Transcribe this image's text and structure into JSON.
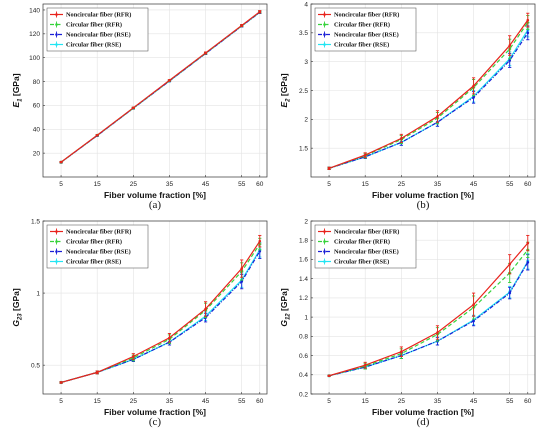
{
  "chart_data": [
    {
      "type": "line",
      "caption": "(a)",
      "xlabel": "Fiber volume fraction [%]",
      "ylabel": "E",
      "ylabel_sub": "1",
      "ylabel_unit": " [GPa]",
      "x": [
        5,
        15,
        25,
        35,
        45,
        55,
        60
      ],
      "xlim": [
        0,
        62
      ],
      "ylim": [
        0,
        145
      ],
      "yticks": [
        20,
        40,
        60,
        80,
        100,
        120,
        140
      ],
      "grid": true,
      "legend": "top-left",
      "series": [
        {
          "name": "Noncircular fiber (RFR)",
          "values": [
            12.5,
            35.0,
            58.0,
            81.0,
            104.0,
            127.0,
            138.5
          ],
          "err": [
            0.5,
            0.5,
            0.6,
            0.6,
            0.8,
            0.8,
            1.0
          ]
        },
        {
          "name": "Circular fiber (RFR)",
          "values": [
            12.4,
            34.9,
            57.8,
            80.8,
            103.8,
            126.8,
            138.3
          ],
          "err": [
            0.5,
            0.5,
            0.6,
            0.6,
            0.8,
            0.8,
            1.0
          ]
        },
        {
          "name": "Noncircular fiber (RSE)",
          "values": [
            12.3,
            34.7,
            57.6,
            80.5,
            103.5,
            126.5,
            138.0
          ],
          "err": [
            0.5,
            0.5,
            0.6,
            0.6,
            0.8,
            0.8,
            1.0
          ]
        },
        {
          "name": "Circular fiber (RSE)",
          "values": [
            12.3,
            34.7,
            57.6,
            80.5,
            103.5,
            126.5,
            138.0
          ],
          "err": [
            0.5,
            0.5,
            0.6,
            0.6,
            0.8,
            0.8,
            1.0
          ]
        }
      ]
    },
    {
      "type": "line",
      "caption": "(b)",
      "xlabel": "Fiber volume fraction [%]",
      "ylabel": "E",
      "ylabel_sub": "2",
      "ylabel_unit": " [GPa]",
      "x": [
        5,
        15,
        25,
        35,
        45,
        55,
        60
      ],
      "xlim": [
        0,
        62
      ],
      "ylim": [
        1,
        4
      ],
      "yticks": [
        1.5,
        2,
        2.5,
        3,
        3.5,
        4
      ],
      "grid": true,
      "legend": "top-left",
      "series": [
        {
          "name": "Noncircular fiber (RFR)",
          "values": [
            1.15,
            1.38,
            1.67,
            2.05,
            2.58,
            3.28,
            3.72
          ],
          "err": [
            0.02,
            0.04,
            0.07,
            0.1,
            0.14,
            0.17,
            0.12
          ]
        },
        {
          "name": "Circular fiber (RFR)",
          "values": [
            1.15,
            1.37,
            1.65,
            2.02,
            2.55,
            3.22,
            3.68
          ],
          "err": [
            0.02,
            0.04,
            0.07,
            0.1,
            0.14,
            0.17,
            0.12
          ]
        },
        {
          "name": "Noncircular fiber (RSE)",
          "values": [
            1.15,
            1.35,
            1.6,
            1.95,
            2.38,
            3.02,
            3.5
          ],
          "err": [
            0.02,
            0.03,
            0.05,
            0.07,
            0.1,
            0.12,
            0.12
          ]
        },
        {
          "name": "Circular fiber (RSE)",
          "values": [
            1.15,
            1.35,
            1.6,
            1.95,
            2.4,
            3.05,
            3.55
          ],
          "err": [
            0.02,
            0.03,
            0.05,
            0.07,
            0.1,
            0.12,
            0.12
          ]
        }
      ]
    },
    {
      "type": "line",
      "caption": "(c)",
      "xlabel": "Fiber volume fraction [%]",
      "ylabel": "G",
      "ylabel_sub": "23",
      "ylabel_unit": " [GPa]",
      "x": [
        5,
        15,
        25,
        35,
        45,
        55,
        60
      ],
      "xlim": [
        0,
        62
      ],
      "ylim": [
        0.3,
        1.5
      ],
      "yticks": [
        0.5,
        1,
        1.5
      ],
      "grid": true,
      "legend": "top-left",
      "series": [
        {
          "name": "Noncircular fiber (RFR)",
          "values": [
            0.38,
            0.45,
            0.56,
            0.69,
            0.89,
            1.17,
            1.36
          ],
          "err": [
            0.005,
            0.01,
            0.02,
            0.03,
            0.05,
            0.06,
            0.04
          ]
        },
        {
          "name": "Circular fiber (RFR)",
          "values": [
            0.38,
            0.45,
            0.55,
            0.68,
            0.88,
            1.15,
            1.34
          ],
          "err": [
            0.005,
            0.01,
            0.02,
            0.03,
            0.05,
            0.06,
            0.04
          ]
        },
        {
          "name": "Noncircular fiber (RSE)",
          "values": [
            0.38,
            0.45,
            0.54,
            0.66,
            0.83,
            1.08,
            1.29
          ],
          "err": [
            0.005,
            0.01,
            0.015,
            0.02,
            0.03,
            0.05,
            0.05
          ]
        },
        {
          "name": "Circular fiber (RSE)",
          "values": [
            0.38,
            0.45,
            0.54,
            0.66,
            0.84,
            1.09,
            1.3
          ],
          "err": [
            0.005,
            0.01,
            0.015,
            0.02,
            0.03,
            0.05,
            0.05
          ]
        }
      ]
    },
    {
      "type": "line",
      "caption": "(d)",
      "xlabel": "Fiber volume fraction [%]",
      "ylabel": "G",
      "ylabel_sub": "12",
      "ylabel_unit": " [GPa]",
      "x": [
        5,
        15,
        25,
        35,
        45,
        55,
        60
      ],
      "xlim": [
        0,
        62
      ],
      "ylim": [
        0.2,
        2
      ],
      "yticks": [
        0.2,
        0.4,
        0.6,
        0.8,
        1,
        1.2,
        1.4,
        1.6,
        1.8,
        2
      ],
      "grid": true,
      "legend": "top-left",
      "series": [
        {
          "name": "Noncircular fiber (RFR)",
          "values": [
            0.39,
            0.5,
            0.64,
            0.84,
            1.13,
            1.55,
            1.77
          ],
          "err": [
            0.005,
            0.03,
            0.05,
            0.07,
            0.12,
            0.1,
            0.08
          ]
        },
        {
          "name": "Circular fiber (RFR)",
          "values": [
            0.39,
            0.49,
            0.62,
            0.82,
            1.1,
            1.46,
            1.7
          ],
          "err": [
            0.005,
            0.03,
            0.05,
            0.07,
            0.12,
            0.1,
            0.08
          ]
        },
        {
          "name": "Noncircular fiber (RSE)",
          "values": [
            0.39,
            0.48,
            0.6,
            0.75,
            0.96,
            1.25,
            1.57
          ],
          "err": [
            0.005,
            0.02,
            0.03,
            0.04,
            0.05,
            0.06,
            0.08
          ]
        },
        {
          "name": "Circular fiber (RSE)",
          "values": [
            0.39,
            0.48,
            0.6,
            0.75,
            0.97,
            1.26,
            1.58
          ],
          "err": [
            0.005,
            0.02,
            0.03,
            0.04,
            0.05,
            0.06,
            0.08
          ]
        }
      ]
    }
  ],
  "series_style": [
    {
      "color": "#e8231c",
      "dash": "",
      "marker": "circle"
    },
    {
      "color": "#35d23b",
      "dash": "4,2.5",
      "marker": "diamond"
    },
    {
      "color": "#1a1fd6",
      "dash": "4,1.5,1,1.5",
      "marker": "circle"
    },
    {
      "color": "#22e5f2",
      "dash": "",
      "marker": "square"
    }
  ]
}
